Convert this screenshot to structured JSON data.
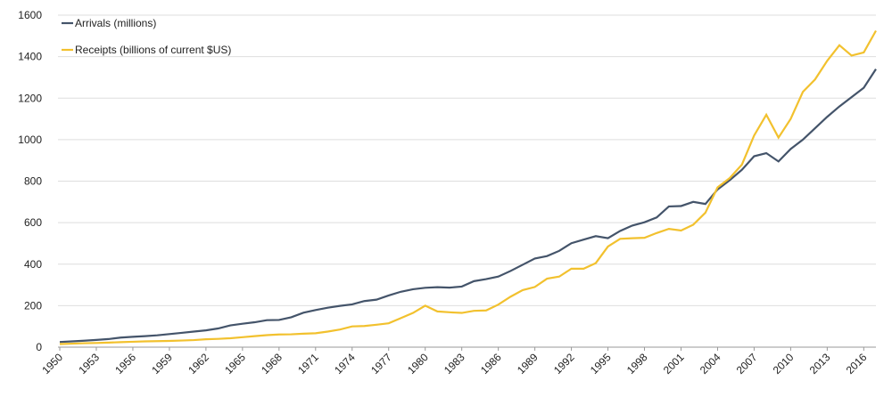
{
  "chart_data": {
    "type": "line",
    "x": [
      1950,
      1951,
      1952,
      1953,
      1954,
      1955,
      1956,
      1957,
      1958,
      1959,
      1960,
      1961,
      1962,
      1963,
      1964,
      1965,
      1966,
      1967,
      1968,
      1969,
      1970,
      1971,
      1972,
      1973,
      1974,
      1975,
      1976,
      1977,
      1978,
      1979,
      1980,
      1981,
      1982,
      1983,
      1984,
      1985,
      1986,
      1987,
      1988,
      1989,
      1990,
      1991,
      1992,
      1993,
      1994,
      1995,
      1996,
      1997,
      1998,
      1999,
      2000,
      2001,
      2002,
      2003,
      2004,
      2005,
      2006,
      2007,
      2008,
      2009,
      2010,
      2011,
      2012,
      2013,
      2014,
      2015,
      2016,
      2017
    ],
    "series": [
      {
        "name": "Arrivals (millions)",
        "color": "#44546a",
        "values": [
          25,
          28,
          31,
          35,
          39,
          46,
          50,
          53,
          57,
          63,
          69,
          75,
          81,
          90,
          105,
          113,
          120,
          130,
          131,
          144,
          166,
          179,
          190,
          199,
          206,
          222,
          229,
          249,
          267,
          279,
          286,
          289,
          287,
          292,
          318,
          328,
          340,
          367,
          397,
          427,
          439,
          464,
          501,
          518,
          535,
          525,
          560,
          586,
          602,
          625,
          678,
          680,
          700,
          690,
          760,
          805,
          855,
          920,
          935,
          895,
          955,
          1000,
          1055,
          1110,
          1160,
          1205,
          1250,
          1340
        ]
      },
      {
        "name": "Receipts (billions of current $US)",
        "color": "#f2c12e",
        "values": [
          15,
          17,
          19,
          20,
          22,
          24,
          26,
          28,
          29,
          30,
          32,
          34,
          38,
          40,
          43,
          48,
          53,
          58,
          61,
          62,
          65,
          67,
          75,
          85,
          100,
          102,
          108,
          115,
          140,
          165,
          200,
          172,
          168,
          165,
          175,
          177,
          205,
          243,
          275,
          290,
          330,
          340,
          378,
          378,
          405,
          485,
          522,
          525,
          527,
          550,
          570,
          562,
          590,
          648,
          770,
          815,
          880,
          1020,
          1120,
          1010,
          1100,
          1230,
          1290,
          1380,
          1455,
          1405,
          1420,
          1525
        ]
      }
    ],
    "xlim": [
      1950,
      2017
    ],
    "xticks": [
      1950,
      1953,
      1956,
      1959,
      1962,
      1965,
      1968,
      1971,
      1974,
      1977,
      1980,
      1983,
      1986,
      1989,
      1992,
      1995,
      1998,
      2001,
      2004,
      2007,
      2010,
      2013,
      2016
    ],
    "ylim": [
      0,
      1600
    ],
    "yticks": [
      0,
      200,
      400,
      600,
      800,
      1000,
      1200,
      1400,
      1600
    ],
    "grid": true,
    "legend": "top-left"
  }
}
